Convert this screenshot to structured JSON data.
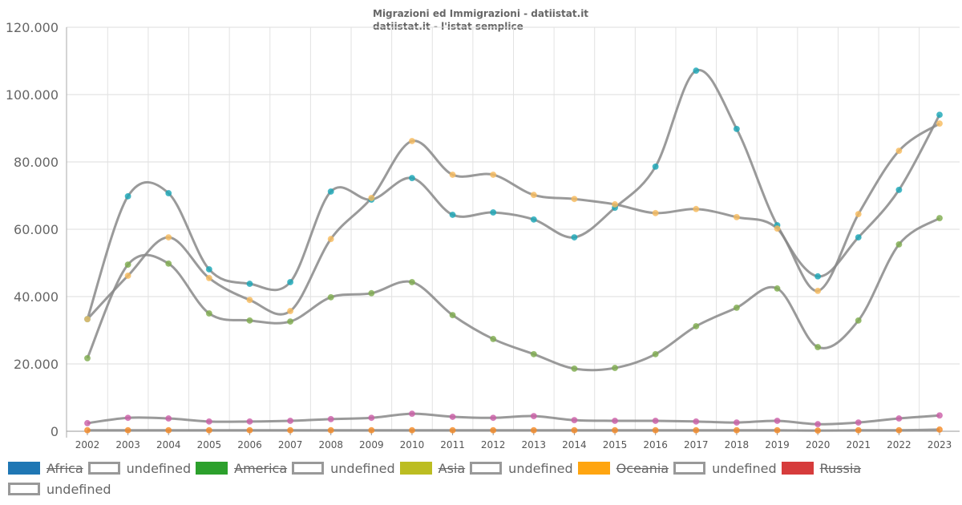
{
  "chart_data": {
    "type": "line",
    "title": "Migrazioni ed Immigrazioni - datiistat.it",
    "subtitle": "datiistat.it - l'istat semplice",
    "xlabel": "",
    "ylabel": "",
    "ylim": [
      0,
      120000
    ],
    "yticks": [
      0,
      20000,
      40000,
      60000,
      80000,
      100000,
      120000
    ],
    "ytick_labels": [
      "0",
      "20.000",
      "40.000",
      "60.000",
      "80.000",
      "100.000",
      "120.000"
    ],
    "grid": true,
    "legend_position": "bottom",
    "categories": [
      "2002",
      "2003",
      "2004",
      "2005",
      "2006",
      "2007",
      "2008",
      "2009",
      "2010",
      "2011",
      "2012",
      "2013",
      "2014",
      "2015",
      "2016",
      "2017",
      "2018",
      "2019",
      "2020",
      "2021",
      "2022",
      "2023"
    ],
    "series": [
      {
        "name": "Africa",
        "legend_color": "#1f77b4",
        "marker_color": "#1aa7b8",
        "hidden": true,
        "values": [
          33300,
          69800,
          70700,
          48100,
          43800,
          44300,
          71200,
          68800,
          75200,
          64300,
          65000,
          62900,
          57600,
          66400,
          78600,
          107100,
          89800,
          61200,
          46000,
          57600,
          71700,
          94000
        ]
      },
      {
        "name": "America",
        "legend_color": "#2ca02c",
        "marker_color": "#f7bb5e",
        "hidden": true,
        "values": [
          33300,
          46200,
          57600,
          45500,
          39000,
          35700,
          57100,
          69300,
          86200,
          76200,
          76200,
          70200,
          69000,
          67400,
          64800,
          66000,
          63600,
          60200,
          41700,
          64500,
          83300,
          91400
        ]
      },
      {
        "name": "Asia",
        "legend_color": "#bcbd22",
        "marker_color": "#7fad4f",
        "hidden": true,
        "values": [
          21700,
          49500,
          49800,
          35000,
          32900,
          32600,
          39800,
          41000,
          44300,
          34500,
          27400,
          22900,
          18600,
          18800,
          22900,
          31200,
          36700,
          42400,
          25000,
          32900,
          55500,
          63300
        ]
      },
      {
        "name": "Oceania",
        "legend_color": "#ffa510",
        "marker_color": "#f58b27",
        "hidden": true,
        "values": [
          300,
          300,
          300,
          300,
          300,
          300,
          300,
          300,
          300,
          300,
          300,
          300,
          300,
          300,
          300,
          300,
          300,
          300,
          200,
          300,
          300,
          500
        ]
      },
      {
        "name": "Russia",
        "legend_color": "#d63c3c",
        "marker_color": "#cc5fa8",
        "hidden": true,
        "values": [
          2400,
          4000,
          3800,
          2900,
          2900,
          3100,
          3600,
          4000,
          5200,
          4300,
          4000,
          4500,
          3300,
          3100,
          3100,
          2900,
          2600,
          3100,
          2100,
          2600,
          3800,
          4700
        ]
      }
    ],
    "legend": [
      "Africa",
      "undefined",
      "America",
      "undefined",
      "Asia",
      "undefined",
      "Oceania",
      "undefined",
      "Russia",
      "undefined"
    ]
  }
}
